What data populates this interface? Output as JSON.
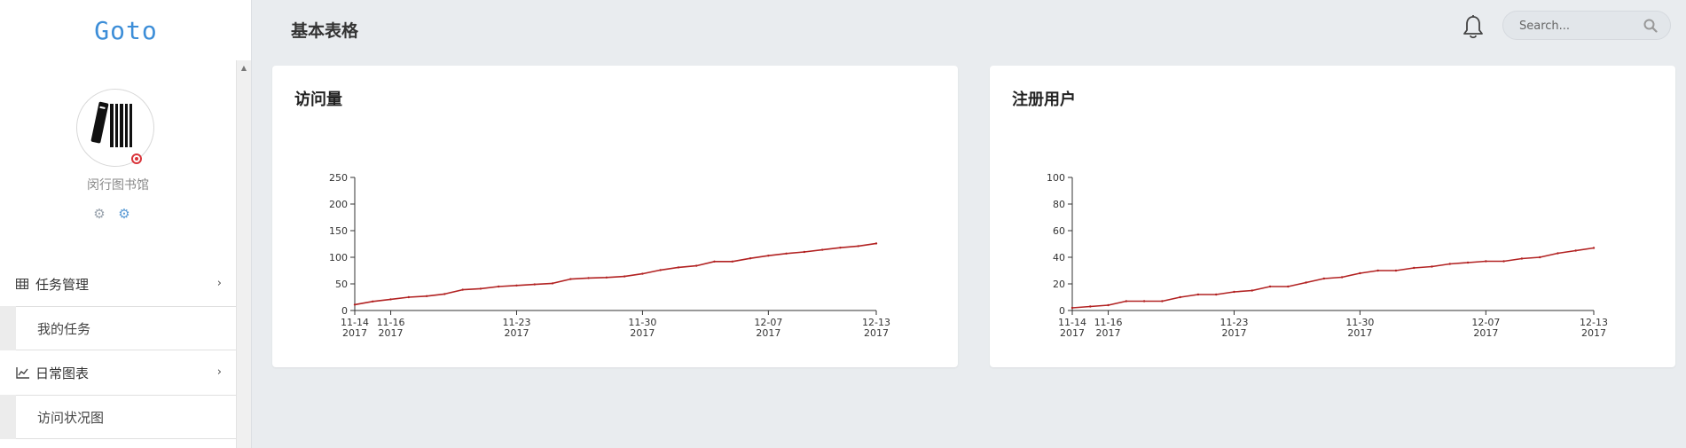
{
  "app": {
    "logo": "Goto"
  },
  "header": {
    "title": "基本表格",
    "search_placeholder": "Search..."
  },
  "sidebar": {
    "library_name": "闵行图书馆",
    "menu": [
      {
        "label": "任务管理",
        "icon": "table-icon",
        "items": [
          {
            "label": "我的任务"
          }
        ]
      },
      {
        "label": "日常图表",
        "icon": "line-chart-icon",
        "items": [
          {
            "label": "访问状况图"
          }
        ]
      }
    ]
  },
  "colors": {
    "accent": "#3d8ed8",
    "line": "#b22222",
    "background": "#e9ecef"
  },
  "charts": [
    {
      "title": "访问量"
    },
    {
      "title": "注册用户"
    }
  ],
  "chart_data": [
    {
      "type": "line",
      "title": "访问量",
      "xlabel": "",
      "ylabel": "",
      "x_ticks": [
        "11-14 2017",
        "11-16 2017",
        "11-23 2017",
        "11-30 2017",
        "12-07 2017",
        "12-13 2017"
      ],
      "x": [
        "2017-11-14",
        "2017-11-15",
        "2017-11-16",
        "2017-11-17",
        "2017-11-18",
        "2017-11-19",
        "2017-11-20",
        "2017-11-21",
        "2017-11-22",
        "2017-11-23",
        "2017-11-24",
        "2017-11-25",
        "2017-11-26",
        "2017-11-27",
        "2017-11-28",
        "2017-11-29",
        "2017-11-30",
        "2017-12-01",
        "2017-12-02",
        "2017-12-03",
        "2017-12-04",
        "2017-12-05",
        "2017-12-06",
        "2017-12-07",
        "2017-12-08",
        "2017-12-09",
        "2017-12-10",
        "2017-12-11",
        "2017-12-12",
        "2017-12-13"
      ],
      "values": [
        11,
        17,
        21,
        25,
        27,
        31,
        39,
        41,
        45,
        47,
        49,
        51,
        59,
        61,
        62,
        64,
        69,
        76,
        81,
        84,
        92,
        92,
        98,
        103,
        107,
        110,
        114,
        118,
        121,
        126
      ],
      "ylim": [
        0,
        250
      ],
      "y_ticks": [
        0,
        50,
        100,
        150,
        200,
        250
      ],
      "grid": false,
      "legend": "none"
    },
    {
      "type": "line",
      "title": "注册用户",
      "xlabel": "",
      "ylabel": "",
      "x_ticks": [
        "11-14 2017",
        "11-16 2017",
        "11-23 2017",
        "11-30 2017",
        "12-07 2017",
        "12-13 2017"
      ],
      "x": [
        "2017-11-14",
        "2017-11-15",
        "2017-11-16",
        "2017-11-17",
        "2017-11-18",
        "2017-11-19",
        "2017-11-20",
        "2017-11-21",
        "2017-11-22",
        "2017-11-23",
        "2017-11-24",
        "2017-11-25",
        "2017-11-26",
        "2017-11-27",
        "2017-11-28",
        "2017-11-29",
        "2017-11-30",
        "2017-12-01",
        "2017-12-02",
        "2017-12-03",
        "2017-12-04",
        "2017-12-05",
        "2017-12-06",
        "2017-12-07",
        "2017-12-08",
        "2017-12-09",
        "2017-12-10",
        "2017-12-11",
        "2017-12-12",
        "2017-12-13"
      ],
      "values": [
        2,
        3,
        4,
        7,
        7,
        7,
        10,
        12,
        12,
        14,
        15,
        18,
        18,
        21,
        24,
        25,
        28,
        30,
        30,
        32,
        33,
        35,
        36,
        37,
        37,
        39,
        40,
        43,
        45,
        47
      ],
      "ylim": [
        0,
        100
      ],
      "y_ticks": [
        0,
        20,
        40,
        60,
        80,
        100
      ],
      "grid": false,
      "legend": "none"
    }
  ]
}
